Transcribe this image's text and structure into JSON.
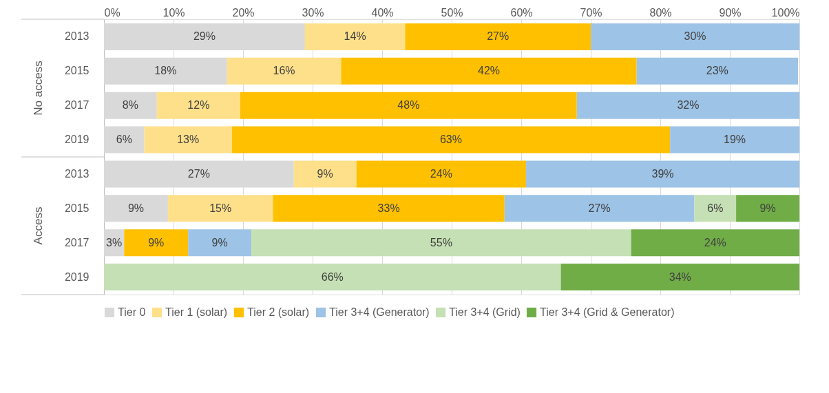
{
  "chart_data": {
    "type": "bar",
    "orientation": "horizontal",
    "stacked": true,
    "categories": [
      "2013",
      "2015",
      "2017",
      "2019",
      "2013",
      "2015",
      "2017",
      "2019"
    ],
    "annotations": [
      "No access",
      "Access"
    ],
    "xlim": [
      0,
      100
    ],
    "xticks": [
      {
        "value": 0,
        "label": "0%"
      },
      {
        "value": 10,
        "label": "10%"
      },
      {
        "value": 20,
        "label": "20%"
      },
      {
        "value": 30,
        "label": "30%"
      },
      {
        "value": 40,
        "label": "40%"
      },
      {
        "value": 50,
        "label": "50%"
      },
      {
        "value": 60,
        "label": "60%"
      },
      {
        "value": 70,
        "label": "70%"
      },
      {
        "value": 80,
        "label": "80%"
      },
      {
        "value": 90,
        "label": "90%"
      },
      {
        "value": 100,
        "label": "100%"
      }
    ],
    "grid": "x",
    "legend": "bottom",
    "series": [
      {
        "name": "Tier 0",
        "color": "#d9d9d9",
        "values": [
          28.9,
          17.7,
          7.6,
          5.8,
          27.3,
          9.2,
          2.9,
          null
        ],
        "value_labels": [
          "29%",
          "18%",
          "8%",
          "6%",
          "27%",
          "9%",
          "3%",
          null
        ]
      },
      {
        "name": "Tier 1 (solar)",
        "color": "#ffe08a",
        "values": [
          14.4,
          16.4,
          12.0,
          12.6,
          9.0,
          15.1,
          null,
          null
        ],
        "value_labels": [
          "14%",
          "16%",
          "12%",
          "13%",
          "9%",
          "15%",
          null,
          null
        ]
      },
      {
        "name": "Tier 2 (solar)",
        "color": "#ffc000",
        "values": [
          26.7,
          42.5,
          48.4,
          63.0,
          24.4,
          33.3,
          9.2,
          null
        ],
        "value_labels": [
          "27%",
          "42%",
          "48%",
          "63%",
          "24%",
          "33%",
          "9%",
          null
        ]
      },
      {
        "name": "Tier 3+4 (Generator)",
        "color": "#9dc3e6",
        "values": [
          30.0,
          23.2,
          32.0,
          18.6,
          39.3,
          27.3,
          9.1,
          null
        ],
        "value_labels": [
          "30%",
          "23%",
          "32%",
          "19%",
          "39%",
          "27%",
          "9%",
          null
        ]
      },
      {
        "name": "Tier 3+4 (Grid)",
        "color": "#c5e0b4",
        "values": [
          null,
          null,
          null,
          null,
          null,
          6.0,
          54.6,
          65.7
        ],
        "value_labels": [
          null,
          null,
          null,
          null,
          null,
          "6%",
          "55%",
          "66%"
        ]
      },
      {
        "name": "Tier 3+4 (Grid & Generator)",
        "color": "#70ad47",
        "values": [
          null,
          null,
          null,
          null,
          null,
          9.1,
          24.2,
          34.3
        ],
        "value_labels": [
          null,
          null,
          null,
          null,
          null,
          "9%",
          "24%",
          "34%"
        ]
      }
    ]
  }
}
